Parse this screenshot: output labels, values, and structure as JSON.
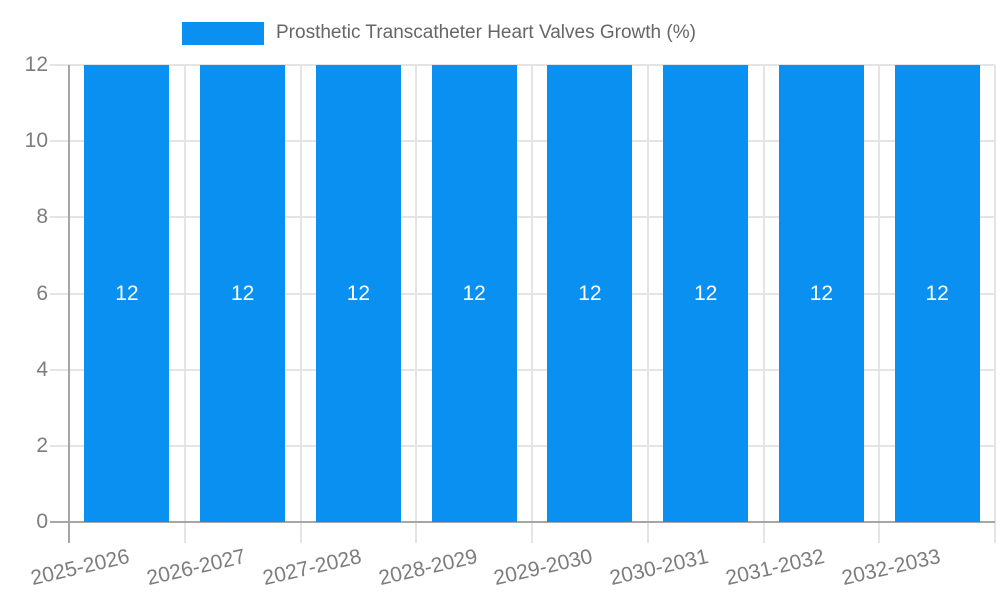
{
  "legend": {
    "items": [
      {
        "label": "Prosthetic Transcatheter Heart Valves Growth (%)",
        "swatch_color": "#0a90f0"
      }
    ],
    "position": "top"
  },
  "chart_data": {
    "type": "bar",
    "title": "Prosthetic Transcatheter Heart Valves Growth (%)",
    "categories": [
      "2025-2026",
      "2026-2027",
      "2027-2028",
      "2028-2029",
      "2029-2030",
      "2030-2031",
      "2031-2032",
      "2032-2033"
    ],
    "series": [
      {
        "name": "Prosthetic Transcatheter Heart Valves Growth (%)",
        "values": [
          12,
          12,
          12,
          12,
          12,
          12,
          12,
          12
        ]
      }
    ],
    "value_labels_shown": true,
    "xlabel": "",
    "ylabel": "",
    "ylim": [
      0,
      12
    ],
    "yticks": [
      0,
      2,
      4,
      6,
      8,
      10,
      12
    ],
    "grid": true,
    "x_tick_rotation_deg": -13,
    "legend_position": "top-center",
    "colors": {
      "bar": "#0a90f0",
      "value_text": "#ffffff",
      "axis_text": "#7d7d7d",
      "legend_text": "#666666",
      "grid": "#e4e4e4",
      "axis_line": "#a6a6a6",
      "background": "#ffffff"
    }
  }
}
